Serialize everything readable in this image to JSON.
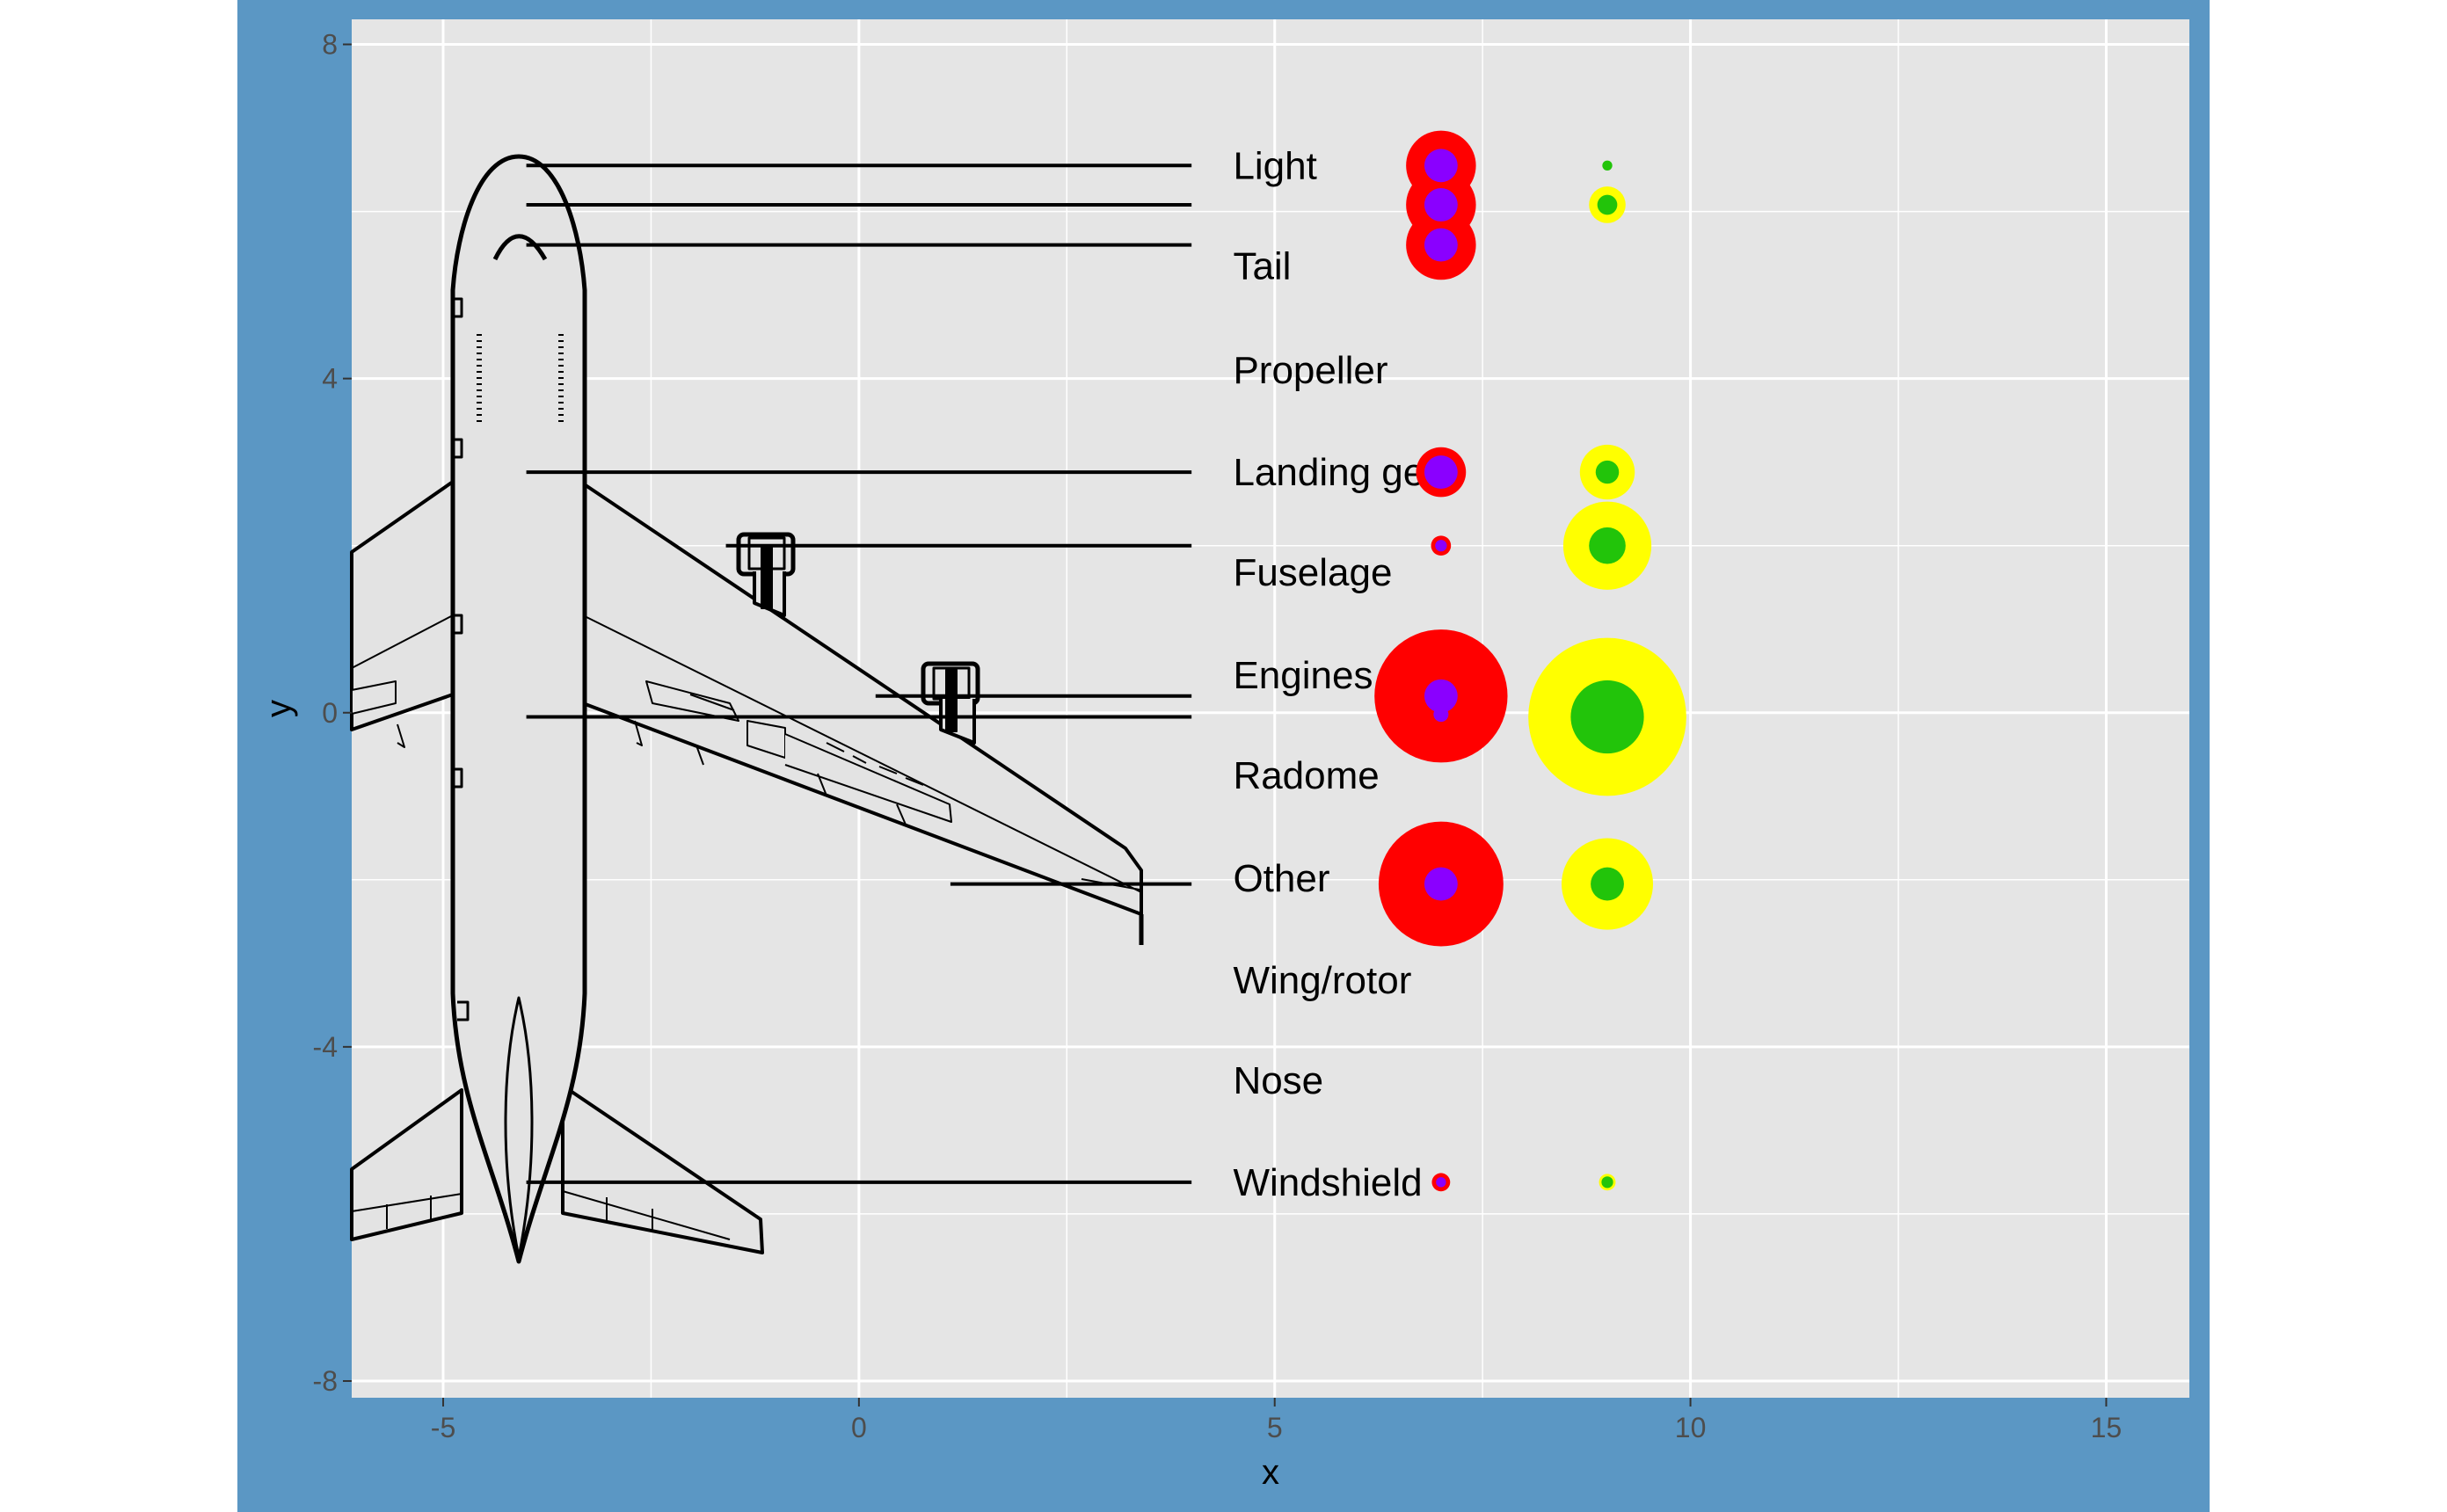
{
  "chart_data": {
    "type": "scatter",
    "title": "",
    "xlabel": "x",
    "ylabel": "y",
    "xlim": [
      -6.1,
      16.0
    ],
    "ylim": [
      -8.2,
      8.3
    ],
    "x_ticks": [
      "-5",
      "0",
      "5",
      "10",
      "15"
    ],
    "x_tick_values": [
      -5,
      0,
      5,
      10,
      15
    ],
    "y_ticks": [
      "-8",
      "-4",
      "0",
      "4",
      "8"
    ],
    "y_tick_values": [
      -8,
      -4,
      0,
      4,
      8
    ],
    "grid": true,
    "legend": "none",
    "colors": {
      "outer_background": "#5b97c4",
      "panel_background": "#e5e5e5",
      "grid": "#ffffff",
      "circle_col7_outer": "#ff0000",
      "circle_col7_inner": "#8a00ff",
      "circle_col9_outer": "#ffff00",
      "circle_col9_inner": "#22c40a",
      "aircraft_fill": "#e3e3e3",
      "aircraft_stroke": "#000000"
    },
    "labels": [
      {
        "text": "Light",
        "x": 4.5,
        "y": 6.55
      },
      {
        "text": "Tail",
        "x": 4.5,
        "y": 5.35
      },
      {
        "text": "Propeller",
        "x": 4.5,
        "y": 4.1
      },
      {
        "text": "Landing gear",
        "x": 4.5,
        "y": 2.88
      },
      {
        "text": "Fuselage",
        "x": 4.5,
        "y": 1.68
      },
      {
        "text": "Engines",
        "x": 4.5,
        "y": 0.45
      },
      {
        "text": "Radome",
        "x": 4.5,
        "y": -0.75
      },
      {
        "text": "Other",
        "x": 4.5,
        "y": -1.98
      },
      {
        "text": "Wing/rotor",
        "x": 4.5,
        "y": -3.2
      },
      {
        "text": "Nose",
        "x": 4.5,
        "y": -4.4
      },
      {
        "text": "Windshield",
        "x": 4.5,
        "y": -5.62
      }
    ],
    "leader_lines": [
      {
        "x1": -4.0,
        "x2": 4.0,
        "y": 6.55
      },
      {
        "x1": -4.0,
        "x2": 4.0,
        "y": 6.08
      },
      {
        "x1": -4.0,
        "x2": 4.0,
        "y": 5.6
      },
      {
        "x1": -4.0,
        "x2": 4.0,
        "y": 2.88
      },
      {
        "x1": -1.6,
        "x2": 4.0,
        "y": 2.0
      },
      {
        "x1": 0.2,
        "x2": 4.0,
        "y": 0.2
      },
      {
        "x1": -4.0,
        "x2": 4.0,
        "y": -0.05
      },
      {
        "x1": 1.1,
        "x2": 4.0,
        "y": -2.05
      },
      {
        "x1": -4.0,
        "x2": 4.0,
        "y": -5.62
      }
    ],
    "series": [
      {
        "x": 7,
        "outer_size": [
          0.42,
          0.42,
          0.42,
          0.3,
          0.12,
          0.8,
          0.75,
          0.11
        ],
        "inner_size": [
          0.2,
          0.2,
          0.2,
          0.2,
          0.07,
          0.2,
          0.2,
          0.06
        ],
        "y": [
          6.55,
          6.08,
          5.6,
          2.88,
          2.0,
          0.2,
          -2.05,
          -5.62
        ],
        "extra_inner": [
          {
            "y": -0.02,
            "size": 0.09
          }
        ]
      },
      {
        "x": 9,
        "outer_size": [
          0.03,
          0.22,
          0.33,
          0.53,
          0.95,
          0.55,
          0.1
        ],
        "inner_size": [
          0.06,
          0.12,
          0.14,
          0.22,
          0.44,
          0.2,
          0.07
        ],
        "y": [
          6.55,
          6.08,
          2.88,
          2.0,
          -0.05,
          -2.05,
          -5.62
        ]
      }
    ]
  }
}
